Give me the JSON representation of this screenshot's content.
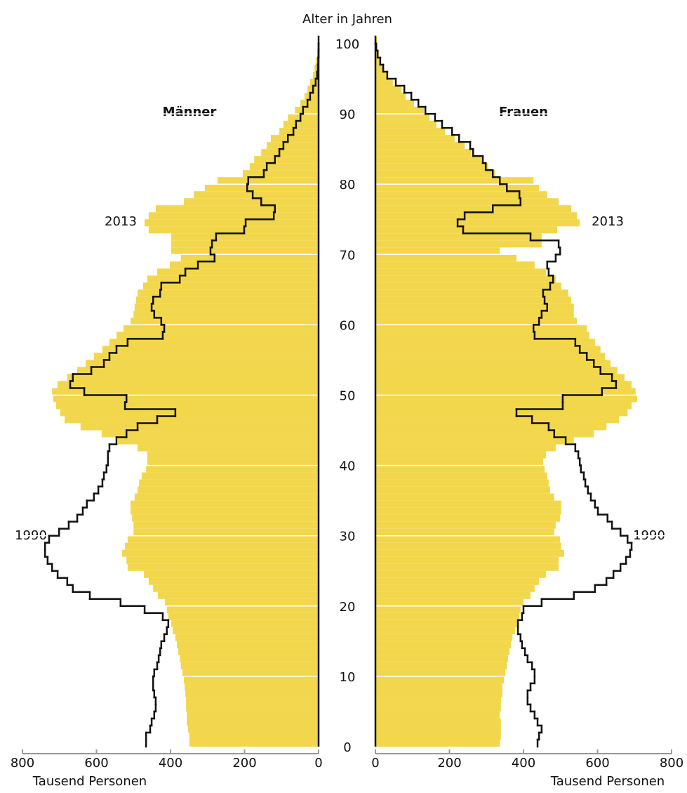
{
  "chart_data": {
    "type": "pyramid",
    "y_label": "Alter in Jahren",
    "x_label": "Tausend Personen",
    "x": [
      0,
      1,
      2,
      3,
      4,
      5,
      6,
      7,
      8,
      9,
      10,
      11,
      12,
      13,
      14,
      15,
      16,
      17,
      18,
      19,
      20,
      21,
      22,
      23,
      24,
      25,
      26,
      27,
      28,
      29,
      30,
      31,
      32,
      33,
      34,
      35,
      36,
      37,
      38,
      39,
      40,
      41,
      42,
      43,
      44,
      45,
      46,
      47,
      48,
      49,
      50,
      51,
      52,
      53,
      54,
      55,
      56,
      57,
      58,
      59,
      60,
      61,
      62,
      63,
      64,
      65,
      66,
      67,
      68,
      69,
      70,
      71,
      72,
      73,
      74,
      75,
      76,
      77,
      78,
      79,
      80,
      81,
      82,
      83,
      84,
      85,
      86,
      87,
      88,
      89,
      90,
      91,
      92,
      93,
      94,
      95,
      96,
      97,
      98,
      99,
      100
    ],
    "ylim": [
      0,
      100
    ],
    "yticks": [
      0,
      10,
      20,
      30,
      40,
      50,
      60,
      70,
      80,
      90,
      100
    ],
    "xlim": [
      0,
      800
    ],
    "xticks": [
      0,
      200,
      400,
      600,
      800
    ],
    "grid": true,
    "sides": [
      {
        "name": "Männer",
        "direction": "left",
        "series": [
          {
            "name": "2013",
            "style": "bar",
            "color": "#f2d74c",
            "values": [
              349,
              349,
              353,
              356,
              356,
              358,
              358,
              360,
              362,
              364,
              368,
              372,
              375,
              379,
              383,
              387,
              394,
              398,
              406,
              410,
              415,
              434,
              447,
              459,
              472,
              516,
              519,
              531,
              523,
              516,
              500,
              500,
              504,
              508,
              508,
              497,
              489,
              485,
              478,
              466,
              463,
              463,
              489,
              542,
              586,
              643,
              686,
              698,
              709,
              717,
              720,
              705,
              679,
              652,
              629,
              607,
              584,
              565,
              546,
              527,
              508,
              500,
              497,
              493,
              489,
              474,
              463,
              436,
              402,
              372,
              398,
              398,
              398,
              459,
              470,
              459,
              440,
              364,
              337,
              307,
              273,
              205,
              186,
              174,
              155,
              140,
              129,
              106,
              95,
              83,
              64,
              49,
              38,
              30,
              23,
              15,
              11,
              8,
              4,
              2,
              1
            ]
          },
          {
            "name": "1990",
            "style": "step",
            "color": "#111111",
            "values": [
              466,
              466,
              455,
              451,
              444,
              440,
              440,
              444,
              447,
              447,
              444,
              436,
              432,
              428,
              425,
              417,
              410,
              406,
              421,
              470,
              535,
              618,
              664,
              679,
              705,
              720,
              732,
              739,
              739,
              728,
              701,
              675,
              652,
              637,
              626,
              607,
              595,
              584,
              580,
              573,
              569,
              569,
              565,
              546,
              519,
              489,
              436,
              387,
              523,
              519,
              633,
              671,
              664,
              614,
              580,
              565,
              546,
              516,
              421,
              417,
              425,
              444,
              451,
              447,
              428,
              425,
              375,
              360,
              326,
              281,
              292,
              288,
              277,
              201,
              197,
              121,
              118,
              155,
              178,
              193,
              190,
              148,
              140,
              118,
              106,
              95,
              83,
              68,
              61,
              49,
              42,
              30,
              23,
              15,
              8,
              4,
              2,
              1,
              0,
              0,
              0
            ]
          }
        ]
      },
      {
        "name": "Frauen",
        "direction": "right",
        "series": [
          {
            "name": "2013",
            "style": "bar",
            "color": "#f2d74c",
            "values": [
              336,
              339,
              339,
              339,
              336,
              339,
              339,
              343,
              343,
              347,
              351,
              355,
              358,
              362,
              366,
              370,
              377,
              385,
              389,
              392,
              400,
              419,
              430,
              442,
              461,
              495,
              495,
              510,
              502,
              499,
              483,
              487,
              499,
              502,
              502,
              483,
              472,
              468,
              464,
              457,
              453,
              461,
              487,
              536,
              590,
              624,
              658,
              681,
              692,
              707,
              703,
              692,
              673,
              654,
              635,
              620,
              608,
              593,
              578,
              571,
              544,
              536,
              536,
              529,
              521,
              502,
              487,
              461,
              430,
              381,
              336,
              449,
              449,
              491,
              552,
              544,
              529,
              495,
              464,
              442,
              427,
              324,
              305,
              286,
              260,
              241,
              214,
              188,
              165,
              146,
              131,
              104,
              82,
              70,
              47,
              32,
              21,
              13,
              9,
              6,
              4
            ]
          },
          {
            "name": "1990",
            "style": "step",
            "color": "#111111",
            "values": [
              438,
              442,
              449,
              438,
              430,
              419,
              411,
              411,
              419,
              430,
              430,
              423,
              411,
              404,
              396,
              392,
              385,
              385,
              396,
              400,
              449,
              536,
              593,
              624,
              643,
              662,
              677,
              688,
              692,
              681,
              662,
              639,
              627,
              601,
              593,
              582,
              574,
              567,
              563,
              555,
              552,
              548,
              540,
              514,
              483,
              468,
              423,
              381,
              506,
              506,
              612,
              650,
              639,
              608,
              590,
              571,
              552,
              540,
              430,
              427,
              442,
              449,
              464,
              457,
              453,
              472,
              480,
              468,
              464,
              487,
              499,
              495,
              419,
              237,
              222,
              241,
              317,
              392,
              389,
              355,
              336,
              317,
              298,
              290,
              264,
              256,
              226,
              207,
              180,
              161,
              135,
              116,
              97,
              78,
              55,
              32,
              21,
              13,
              6,
              2,
              0
            ]
          }
        ]
      }
    ]
  }
}
